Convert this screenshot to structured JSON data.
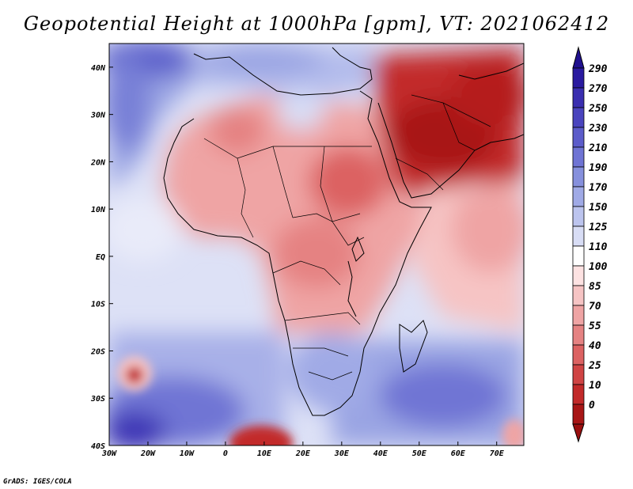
{
  "title": "Geopotential Height at 1000hPa [gpm], VT: 2021062412",
  "credit": "GrADS: IGES/COLA",
  "map": {
    "lon_range": [
      -30,
      77
    ],
    "lat_range": [
      -40,
      45
    ],
    "x_ticks": [
      {
        "lon": -30,
        "label": "30W"
      },
      {
        "lon": -20,
        "label": "20W"
      },
      {
        "lon": -10,
        "label": "10W"
      },
      {
        "lon": 0,
        "label": "0"
      },
      {
        "lon": 10,
        "label": "10E"
      },
      {
        "lon": 20,
        "label": "20E"
      },
      {
        "lon": 30,
        "label": "30E"
      },
      {
        "lon": 40,
        "label": "40E"
      },
      {
        "lon": 50,
        "label": "50E"
      },
      {
        "lon": 60,
        "label": "60E"
      },
      {
        "lon": 70,
        "label": "70E"
      }
    ],
    "y_ticks": [
      {
        "lat": 40,
        "label": "40N"
      },
      {
        "lat": 30,
        "label": "30N"
      },
      {
        "lat": 20,
        "label": "20N"
      },
      {
        "lat": 10,
        "label": "10N"
      },
      {
        "lat": 0,
        "label": "EQ"
      },
      {
        "lat": -10,
        "label": "10S"
      },
      {
        "lat": -20,
        "label": "20S"
      },
      {
        "lat": -30,
        "label": "30S"
      },
      {
        "lat": -40,
        "label": "40S"
      }
    ]
  },
  "colorbar": {
    "levels": [
      {
        "label": "290",
        "color": "#2a1aa0"
      },
      {
        "label": "270",
        "color": "#3a2eb0"
      },
      {
        "label": "250",
        "color": "#4a44be"
      },
      {
        "label": "230",
        "color": "#5c5cca"
      },
      {
        "label": "210",
        "color": "#6f74d4"
      },
      {
        "label": "190",
        "color": "#8690dd"
      },
      {
        "label": "170",
        "color": "#a0aae6"
      },
      {
        "label": "150",
        "color": "#bcc4ee"
      },
      {
        "label": "125",
        "color": "#d8ddf5"
      },
      {
        "label": "110",
        "color": "#ffffff"
      },
      {
        "label": "100",
        "color": "#fde2e2"
      },
      {
        "label": "85",
        "color": "#f6c4c4"
      },
      {
        "label": "70",
        "color": "#efa4a4"
      },
      {
        "label": "55",
        "color": "#e58282"
      },
      {
        "label": "40",
        "color": "#dc6262"
      },
      {
        "label": "25",
        "color": "#d04444"
      },
      {
        "label": "10",
        "color": "#c22a2a"
      },
      {
        "label": "0",
        "color": "#a81616"
      }
    ],
    "top_color": "#20108f",
    "bottom_color": "#9a0f0f"
  }
}
